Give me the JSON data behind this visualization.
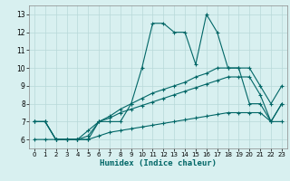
{
  "xlabel": "Humidex (Indice chaleur)",
  "bg_color": "#d8f0f0",
  "grid_color": "#b8d8d8",
  "line_color": "#006666",
  "xlim": [
    -0.5,
    23.5
  ],
  "ylim": [
    5.5,
    13.5
  ],
  "xticks": [
    0,
    1,
    2,
    3,
    4,
    5,
    6,
    7,
    8,
    9,
    10,
    11,
    12,
    13,
    14,
    15,
    16,
    17,
    18,
    19,
    20,
    21,
    22,
    23
  ],
  "yticks": [
    6,
    7,
    8,
    9,
    10,
    11,
    12,
    13
  ],
  "series": [
    [
      7.0,
      7.0,
      6.0,
      6.0,
      6.0,
      6.0,
      7.0,
      7.0,
      7.0,
      8.0,
      10.0,
      12.5,
      12.5,
      12.0,
      12.0,
      10.2,
      13.0,
      12.0,
      10.0,
      10.0,
      8.0,
      8.0,
      7.0,
      8.0
    ],
    [
      7.0,
      7.0,
      6.0,
      6.0,
      6.0,
      6.5,
      7.0,
      7.3,
      7.7,
      8.0,
      8.3,
      8.6,
      8.8,
      9.0,
      9.2,
      9.5,
      9.7,
      10.0,
      10.0,
      10.0,
      10.0,
      9.0,
      8.0,
      9.0
    ],
    [
      7.0,
      7.0,
      6.0,
      6.0,
      6.0,
      6.2,
      7.0,
      7.2,
      7.5,
      7.7,
      7.9,
      8.1,
      8.3,
      8.5,
      8.7,
      8.9,
      9.1,
      9.3,
      9.5,
      9.5,
      9.5,
      8.5,
      7.0,
      8.0
    ],
    [
      6.0,
      6.0,
      6.0,
      6.0,
      6.0,
      6.0,
      6.2,
      6.4,
      6.5,
      6.6,
      6.7,
      6.8,
      6.9,
      7.0,
      7.1,
      7.2,
      7.3,
      7.4,
      7.5,
      7.5,
      7.5,
      7.5,
      7.0,
      7.0
    ]
  ]
}
